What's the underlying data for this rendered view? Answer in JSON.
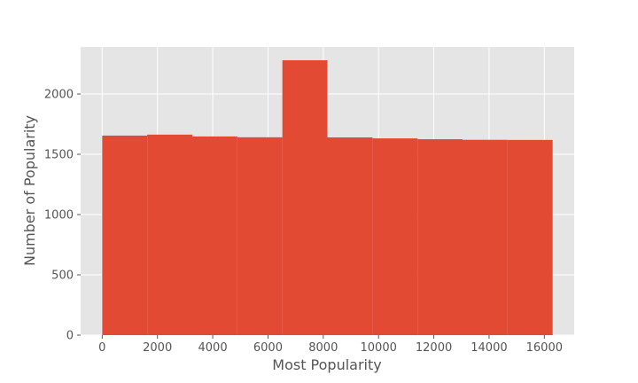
{
  "chart_data": {
    "type": "bar",
    "style": "histogram",
    "title": "",
    "xlabel": "Most Popularity",
    "ylabel": "Number of Popularity",
    "bin_edges": [
      0,
      1630,
      3260,
      4890,
      6520,
      8150,
      9780,
      11410,
      13040,
      14670,
      16300
    ],
    "values": [
      1655,
      1663,
      1648,
      1641,
      2280,
      1640,
      1632,
      1625,
      1620,
      1619
    ],
    "xlim": [
      -780,
      17080
    ],
    "ylim": [
      0,
      2390
    ],
    "xticks": [
      0,
      2000,
      4000,
      6000,
      8000,
      10000,
      12000,
      14000,
      16000
    ],
    "yticks": [
      0,
      500,
      1000,
      1500,
      2000
    ],
    "grid": true,
    "colors": {
      "bar": "#E24A33",
      "plot_background": "#E5E5E5",
      "grid": "#FFFFFF",
      "text": "#555555"
    }
  }
}
